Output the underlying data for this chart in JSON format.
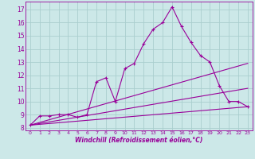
{
  "xlabel": "Windchill (Refroidissement éolien,°C)",
  "bg_color": "#cce8e8",
  "grid_color": "#aacece",
  "line_color": "#990099",
  "xlim": [
    -0.5,
    23.5
  ],
  "ylim": [
    7.8,
    17.6
  ],
  "xticks": [
    0,
    1,
    2,
    3,
    4,
    5,
    6,
    7,
    8,
    9,
    10,
    11,
    12,
    13,
    14,
    15,
    16,
    17,
    18,
    19,
    20,
    21,
    22,
    23
  ],
  "yticks": [
    8,
    9,
    10,
    11,
    12,
    13,
    14,
    15,
    16,
    17
  ],
  "series_main": {
    "x": [
      0,
      1,
      2,
      3,
      4,
      5,
      6,
      7,
      8,
      9,
      10,
      11,
      12,
      13,
      14,
      15,
      16,
      17,
      18,
      19,
      20,
      21,
      22,
      23
    ],
    "y": [
      8.2,
      8.9,
      8.9,
      9.0,
      9.0,
      8.8,
      9.0,
      11.5,
      11.8,
      10.0,
      12.5,
      12.9,
      14.4,
      15.5,
      16.0,
      17.2,
      15.7,
      14.5,
      13.5,
      13.0,
      11.2,
      10.0,
      10.0,
      9.6
    ]
  },
  "series_lines": [
    {
      "x": [
        0,
        23
      ],
      "y": [
        8.2,
        12.9
      ]
    },
    {
      "x": [
        0,
        23
      ],
      "y": [
        8.2,
        11.0
      ]
    },
    {
      "x": [
        0,
        23
      ],
      "y": [
        8.2,
        9.6
      ]
    }
  ],
  "xlabel_color": "#990099",
  "tick_label_color": "#990099",
  "spine_color": "#990099"
}
